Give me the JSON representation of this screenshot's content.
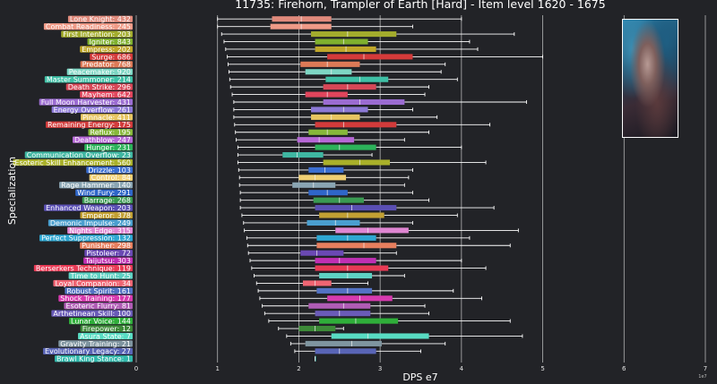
{
  "chart_data": {
    "type": "boxplot",
    "title": "11735: Firehorn, Trampler of Earth [Hard] - Item level 1620 - 1675",
    "xlabel": "DPS e7",
    "ylabel": "Specialization",
    "xlim": [
      0,
      7
    ],
    "xticks": [
      "0",
      "1",
      "2",
      "3",
      "4",
      "5",
      "6",
      "7"
    ],
    "grid_x": true,
    "corner_note": "1e7",
    "series": [
      {
        "label": "Lone Knight: 432",
        "color": "#e08a7c",
        "whislo": 1.0,
        "q1": 1.67,
        "med": 2.03,
        "q3": 2.4,
        "whishi": 4.0
      },
      {
        "label": "Combat Readiness: 245",
        "color": "#ef9a87",
        "whislo": 1.0,
        "q1": 1.65,
        "med": 2.03,
        "q3": 2.4,
        "whishi": 3.4
      },
      {
        "label": "First Intention: 203",
        "color": "#a3ac2d",
        "whislo": 1.05,
        "q1": 2.15,
        "med": 2.6,
        "q3": 3.2,
        "whishi": 4.65
      },
      {
        "label": "Igniter: 843",
        "color": "#7fb02e",
        "whislo": 1.08,
        "q1": 2.2,
        "med": 2.55,
        "q3": 2.85,
        "whishi": 4.1
      },
      {
        "label": "Empress: 202",
        "color": "#c0a72a",
        "whislo": 1.1,
        "q1": 2.2,
        "med": 2.58,
        "q3": 2.95,
        "whishi": 4.2
      },
      {
        "label": "Surge: 686",
        "color": "#d43a3a",
        "whislo": 1.12,
        "q1": 2.35,
        "med": 2.8,
        "q3": 3.4,
        "whishi": 5.0
      },
      {
        "label": "Predator: 768",
        "color": "#dd7a57",
        "whislo": 1.13,
        "q1": 2.02,
        "med": 2.35,
        "q3": 2.75,
        "whishi": 3.8
      },
      {
        "label": "Peacemaker: 920",
        "color": "#7ed6c4",
        "whislo": 1.14,
        "q1": 2.08,
        "med": 2.4,
        "q3": 2.65,
        "whishi": 3.75
      },
      {
        "label": "Master Summoner: 214",
        "color": "#3fc0a6",
        "whislo": 1.15,
        "q1": 2.33,
        "med": 2.75,
        "q3": 3.1,
        "whishi": 3.95
      },
      {
        "label": "Death Strike: 296",
        "color": "#d74757",
        "whislo": 1.16,
        "q1": 2.3,
        "med": 2.6,
        "q3": 2.95,
        "whishi": 3.6
      },
      {
        "label": "Mayhem: 642",
        "color": "#e0455c",
        "whislo": 1.18,
        "q1": 2.08,
        "med": 2.35,
        "q3": 2.6,
        "whishi": 3.55
      },
      {
        "label": "Full Moon Harvester: 431",
        "color": "#9b6cd1",
        "whislo": 1.2,
        "q1": 2.3,
        "med": 2.75,
        "q3": 3.3,
        "whishi": 4.8
      },
      {
        "label": "Energy Overflow: 261",
        "color": "#8c79d6",
        "whislo": 1.2,
        "q1": 2.15,
        "med": 2.55,
        "q3": 2.85,
        "whishi": 3.4
      },
      {
        "label": "Pinnacle: 411",
        "color": "#e7c561",
        "whislo": 1.2,
        "q1": 2.15,
        "med": 2.4,
        "q3": 2.75,
        "whishi": 3.7
      },
      {
        "label": "Remaining Energy: 175",
        "color": "#d23b3b",
        "whislo": 1.21,
        "q1": 2.2,
        "med": 2.55,
        "q3": 3.2,
        "whishi": 4.35
      },
      {
        "label": "Reflux: 195",
        "color": "#87b83a",
        "whislo": 1.22,
        "q1": 2.12,
        "med": 2.35,
        "q3": 2.6,
        "whishi": 3.6
      },
      {
        "label": "Deathblow: 247",
        "color": "#b667d6",
        "whislo": 1.23,
        "q1": 1.98,
        "med": 2.25,
        "q3": 2.68,
        "whishi": 3.3
      },
      {
        "label": "Hunger: 231",
        "color": "#2cb25a",
        "whislo": 1.25,
        "q1": 2.2,
        "med": 2.5,
        "q3": 2.95,
        "whishi": 4.0
      },
      {
        "label": "Communication Overflow: 23",
        "color": "#3fb7a2",
        "whislo": 1.25,
        "q1": 1.8,
        "med": 1.98,
        "q3": 2.3,
        "whishi": 2.9
      },
      {
        "label": "Esoteric Skill Enhancement: 560",
        "color": "#a9b02a",
        "whislo": 1.25,
        "q1": 2.3,
        "med": 2.75,
        "q3": 3.12,
        "whishi": 4.3
      },
      {
        "label": "Drizzle: 103",
        "color": "#3b6fd2",
        "whislo": 1.26,
        "q1": 2.12,
        "med": 2.32,
        "q3": 2.55,
        "whishi": 3.4
      },
      {
        "label": "Control: 84",
        "color": "#f0cf73",
        "whislo": 1.27,
        "q1": 2.0,
        "med": 2.2,
        "q3": 2.58,
        "whishi": 3.35
      },
      {
        "label": "Rage Hammer: 140",
        "color": "#8aa5b3",
        "whislo": 1.27,
        "q1": 1.92,
        "med": 2.18,
        "q3": 2.45,
        "whishi": 3.3
      },
      {
        "label": "Wind Fury: 291",
        "color": "#2f66c9",
        "whislo": 1.28,
        "q1": 2.12,
        "med": 2.35,
        "q3": 2.6,
        "whishi": 3.4
      },
      {
        "label": "Barrage: 268",
        "color": "#3a9a52",
        "whislo": 1.28,
        "q1": 2.18,
        "med": 2.5,
        "q3": 2.8,
        "whishi": 3.6
      },
      {
        "label": "Enhanced Weapon: 203",
        "color": "#5a4fb3",
        "whislo": 1.28,
        "q1": 2.2,
        "med": 2.65,
        "q3": 3.2,
        "whishi": 4.4
      },
      {
        "label": "Emperor: 378",
        "color": "#c2a033",
        "whislo": 1.3,
        "q1": 2.25,
        "med": 2.6,
        "q3": 3.05,
        "whishi": 3.95
      },
      {
        "label": "Demonic Impulse: 249",
        "color": "#4a9fcf",
        "whislo": 1.32,
        "q1": 2.1,
        "med": 2.45,
        "q3": 2.75,
        "whishi": 3.4
      },
      {
        "label": "Nights Edge: 315",
        "color": "#df86d2",
        "whislo": 1.33,
        "q1": 2.45,
        "med": 2.85,
        "q3": 3.35,
        "whishi": 4.7
      },
      {
        "label": "Perfect Suppression: 132",
        "color": "#2ea7d2",
        "whislo": 1.36,
        "q1": 2.22,
        "med": 2.6,
        "q3": 2.95,
        "whishi": 4.1
      },
      {
        "label": "Punisher: 298",
        "color": "#e77f5e",
        "whislo": 1.37,
        "q1": 2.22,
        "med": 2.8,
        "q3": 3.2,
        "whishi": 4.6
      },
      {
        "label": "Pistoleer: 72",
        "color": "#6a49b4",
        "whislo": 1.38,
        "q1": 2.02,
        "med": 2.22,
        "q3": 2.55,
        "whishi": 3.2
      },
      {
        "label": "Taijutsu: 303",
        "color": "#c02fb3",
        "whislo": 1.4,
        "q1": 2.2,
        "med": 2.5,
        "q3": 2.95,
        "whishi": 4.0
      },
      {
        "label": "Berserkers Technique: 119",
        "color": "#e83a55",
        "whislo": 1.42,
        "q1": 2.2,
        "med": 2.6,
        "q3": 3.1,
        "whishi": 4.3
      },
      {
        "label": "Time to Hunt: 25",
        "color": "#5ed1c3",
        "whislo": 1.45,
        "q1": 2.25,
        "med": 2.6,
        "q3": 2.9,
        "whishi": 3.3
      },
      {
        "label": "Loyal Companion: 34",
        "color": "#ef6573",
        "whislo": 1.48,
        "q1": 2.05,
        "med": 2.2,
        "q3": 2.4,
        "whishi": 2.85
      },
      {
        "label": "Robust Spirit: 161",
        "color": "#5373c4",
        "whislo": 1.5,
        "q1": 2.22,
        "med": 2.6,
        "q3": 2.9,
        "whishi": 3.9
      },
      {
        "label": "Shock Training: 177",
        "color": "#d73aaf",
        "whislo": 1.52,
        "q1": 2.35,
        "med": 2.75,
        "q3": 3.15,
        "whishi": 4.25
      },
      {
        "label": "Esoteric Flurry: 81",
        "color": "#b05cb5",
        "whislo": 1.55,
        "q1": 2.12,
        "med": 2.55,
        "q3": 2.88,
        "whishi": 3.55
      },
      {
        "label": "Arthetinean Skill: 100",
        "color": "#6a5bb8",
        "whislo": 1.58,
        "q1": 2.2,
        "med": 2.5,
        "q3": 2.88,
        "whishi": 3.6
      },
      {
        "label": "Lunar Voice: 144",
        "color": "#2fae3a",
        "whislo": 1.63,
        "q1": 2.25,
        "med": 2.7,
        "q3": 3.22,
        "whishi": 4.6
      },
      {
        "label": "Firepower: 12",
        "color": "#3d8a38",
        "whislo": 1.75,
        "q1": 2.0,
        "med": 2.2,
        "q3": 2.45,
        "whishi": 2.55
      },
      {
        "label": "Asura State: 7",
        "color": "#58dcc3",
        "whislo": 1.85,
        "q1": 2.4,
        "med": 2.85,
        "q3": 3.6,
        "whishi": 4.75
      },
      {
        "label": "Gravity Training: 21",
        "color": "#7f95a0",
        "whislo": 1.9,
        "q1": 2.08,
        "med": 2.65,
        "q3": 3.02,
        "whishi": 3.8
      },
      {
        "label": "Evolutionary Legacy: 27",
        "color": "#5965b6",
        "whislo": 1.95,
        "q1": 2.2,
        "med": 2.5,
        "q3": 2.95,
        "whishi": 3.5
      },
      {
        "label": "Brawl King Stance: 1",
        "color": "#31b8ab",
        "whislo": 2.2,
        "q1": 2.2,
        "med": 2.2,
        "q3": 2.2,
        "whishi": 2.2
      }
    ]
  }
}
